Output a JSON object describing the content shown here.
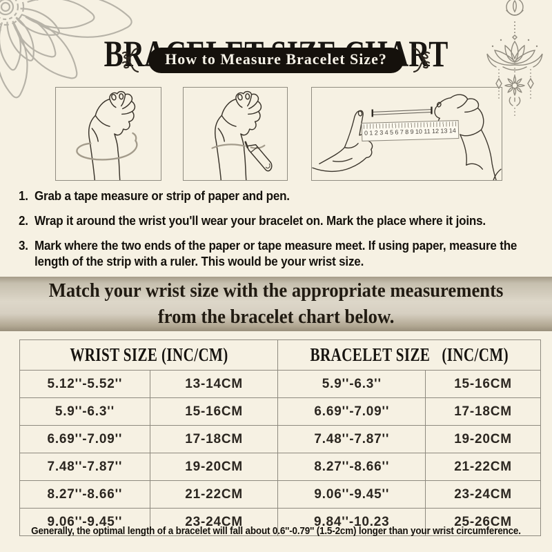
{
  "header": {
    "title": "BRACELET SIZE CHART",
    "badge": "How to Measure Bracelet Size?"
  },
  "steps": [
    {
      "num": "1.",
      "text": "Grab a tape measure or strip of paper and pen."
    },
    {
      "num": "2.",
      "text": "Wrap it around the wrist you'll wear your bracelet on. Mark the place where it joins."
    },
    {
      "num": "3.",
      "text": "Mark where the two ends of the paper or tape measure meet. If using paper, measure the length of the strip with a ruler. This would be your wrist size."
    }
  ],
  "banner": {
    "line1": "Match your wrist size with the appropriate measurements",
    "line2": "from the bracelet chart below."
  },
  "size_table": {
    "headers": [
      "WRIST SIZE (INC/CM)",
      "BRACELET SIZE   (INC/CM)"
    ],
    "rows": [
      [
        "5.12''-5.52''",
        "13-14CM",
        "5.9''-6.3''",
        "15-16CM"
      ],
      [
        "5.9''-6.3''",
        "15-16CM",
        "6.69''-7.09''",
        "17-18CM"
      ],
      [
        "6.69''-7.09''",
        "17-18CM",
        "7.48''-7.87''",
        "19-20CM"
      ],
      [
        "7.48''-7.87''",
        "19-20CM",
        "8.27''-8.66''",
        "21-22CM"
      ],
      [
        "8.27''-8.66''",
        "21-22CM",
        "9.06''-9.45''",
        "23-24CM"
      ],
      [
        "9.06''-9.45''",
        "23-24CM",
        "9.84''-10.23",
        "25-26CM"
      ]
    ]
  },
  "illustrations": {
    "ruler_numbers": [
      "0",
      "1",
      "2",
      "3",
      "4",
      "5",
      "6",
      "7",
      "8",
      "9",
      "10",
      "11",
      "12",
      "13",
      "14"
    ]
  },
  "footer": {
    "note": "Generally, the optimal length of a bracelet will fall about 0.6''-0.79'' (1.5-2cm) longer than your wrist circumference."
  },
  "ornaments": {
    "top_left": "mandala-flower-icon",
    "top_right": "lotus-charm-icon",
    "badge_left": "curly-flourish-icon",
    "badge_right": "curly-flourish-icon"
  },
  "colors": {
    "background": "#f6f1e3",
    "badge_bg": "#15110c",
    "badge_text": "#f7f3e8",
    "banner_mid": "#ddd7c9",
    "banner_edge": "#9d9480",
    "table_border": "#8d897e",
    "ink": "#17140f",
    "line_art": "#3b352c",
    "tape_gray": "#a39b8b",
    "ornament_gray": "#b7b3a8"
  }
}
